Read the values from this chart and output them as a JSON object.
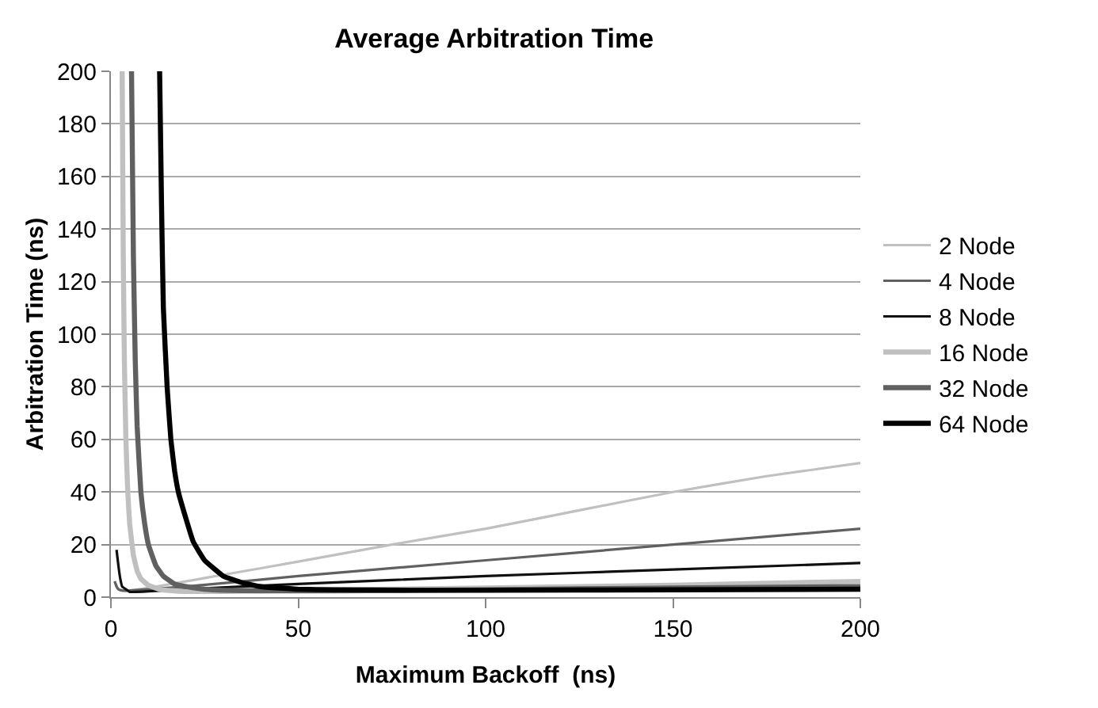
{
  "chart_data": {
    "type": "line",
    "title": "Average Arbitration Time",
    "xlabel": "Maximum Backoff  (ns)",
    "ylabel": "Arbitration Time (ns)",
    "xlim": [
      0,
      200
    ],
    "xticks": [
      0,
      50,
      100,
      150,
      200
    ],
    "ylim": [
      0,
      200
    ],
    "yticks": [
      0,
      20,
      40,
      60,
      80,
      100,
      120,
      140,
      160,
      180,
      200
    ],
    "grid": "y",
    "legend": "right",
    "marker": "none",
    "line_style": "solid",
    "series": [
      {
        "name": "2 Node",
        "color": "#c0c0c0",
        "x": [
          1,
          2,
          3,
          5,
          10,
          20,
          30,
          50,
          75,
          100,
          125,
          150,
          175,
          200
        ],
        "values": [
          6,
          3,
          2.5,
          2.5,
          3.5,
          6,
          8.5,
          13.5,
          20,
          26,
          33,
          40,
          46,
          51
        ]
      },
      {
        "name": "4 Node",
        "color": "#606060",
        "x": [
          1,
          1.5,
          2,
          3,
          5,
          10,
          20,
          50,
          100,
          150,
          200
        ],
        "values": [
          6,
          4,
          3,
          2.5,
          2.5,
          3,
          4,
          8,
          14,
          20,
          26
        ]
      },
      {
        "name": "8 Node",
        "color": "#101010",
        "x": [
          1.5,
          2,
          2.5,
          3,
          4,
          5,
          7,
          10,
          20,
          50,
          100,
          150,
          200
        ],
        "values": [
          18,
          12,
          7,
          4,
          3,
          2,
          2,
          2.2,
          3,
          5,
          8,
          10.5,
          13
        ]
      },
      {
        "name": "16 Node",
        "color": "#c0c0c0",
        "x": [
          3,
          3.3,
          3.6,
          4,
          4.5,
          5,
          6,
          7,
          8,
          10,
          13,
          16,
          20,
          30,
          50,
          100,
          150,
          200
        ],
        "values": [
          200,
          130,
          90,
          60,
          40,
          28,
          16,
          10,
          7,
          4.5,
          3,
          2.5,
          2.2,
          2.2,
          2.6,
          3.5,
          4.5,
          6
        ]
      },
      {
        "name": "32 Node",
        "color": "#606060",
        "x": [
          5.5,
          6,
          6.5,
          7,
          8,
          9,
          10,
          12,
          14,
          17,
          20,
          25,
          30,
          40,
          60,
          100,
          150,
          200
        ],
        "values": [
          200,
          130,
          90,
          65,
          40,
          28,
          20,
          12,
          8,
          5,
          4,
          3,
          2.6,
          2.4,
          2.4,
          2.8,
          3.5,
          4
        ]
      },
      {
        "name": "64 Node",
        "color": "#000000",
        "x": [
          13,
          13.5,
          14,
          15,
          16,
          17,
          18,
          20,
          22,
          25,
          30,
          35,
          40,
          50,
          60,
          80,
          100,
          150,
          200
        ],
        "values": [
          200,
          150,
          110,
          80,
          60,
          48,
          40,
          30,
          21,
          14,
          8,
          5.5,
          4,
          3,
          2.8,
          2.6,
          2.6,
          2.8,
          3
        ]
      }
    ]
  }
}
